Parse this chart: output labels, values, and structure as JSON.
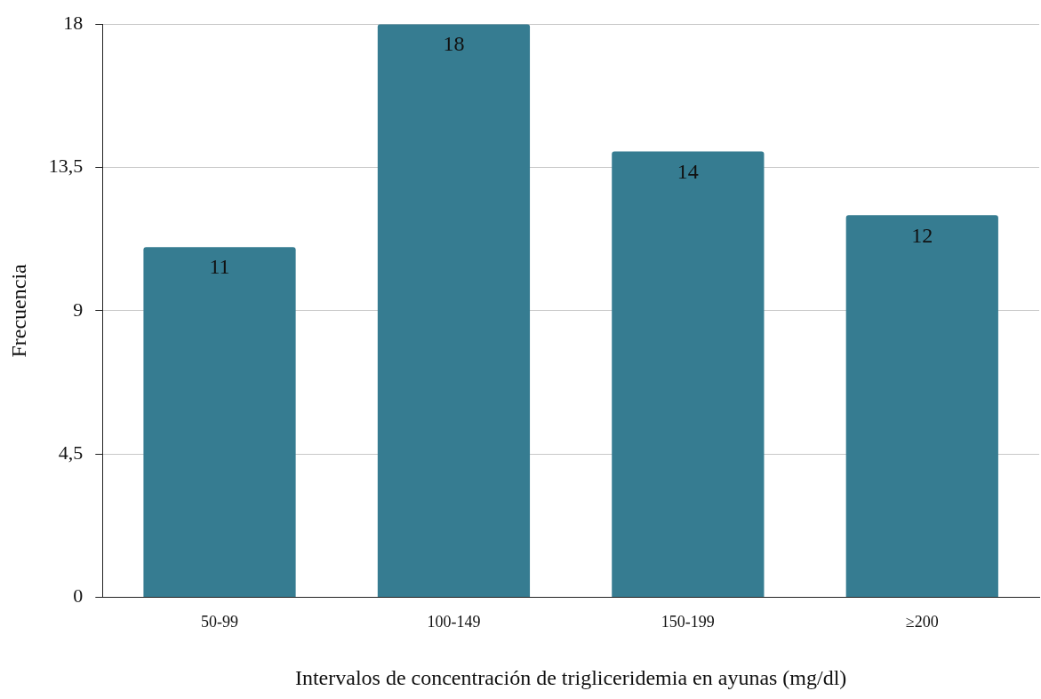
{
  "chart_data": {
    "type": "bar",
    "xlabel": "Intervalos de concentración de trigliceridemia en ayunas (mg/dl)",
    "ylabel": "Frecuencia",
    "categories": [
      "50-99",
      "100-149",
      "150-199",
      "≥200"
    ],
    "values": [
      11,
      18,
      14,
      12
    ],
    "color": "#367c91",
    "ylim": [
      0,
      18
    ],
    "yticks": [
      0,
      {
        "value": 4.5,
        "label": "4,5"
      },
      9,
      {
        "value": 13.5,
        "label": "13,5"
      },
      18
    ],
    "grid": "y",
    "data_labels": true,
    "legend": false
  }
}
